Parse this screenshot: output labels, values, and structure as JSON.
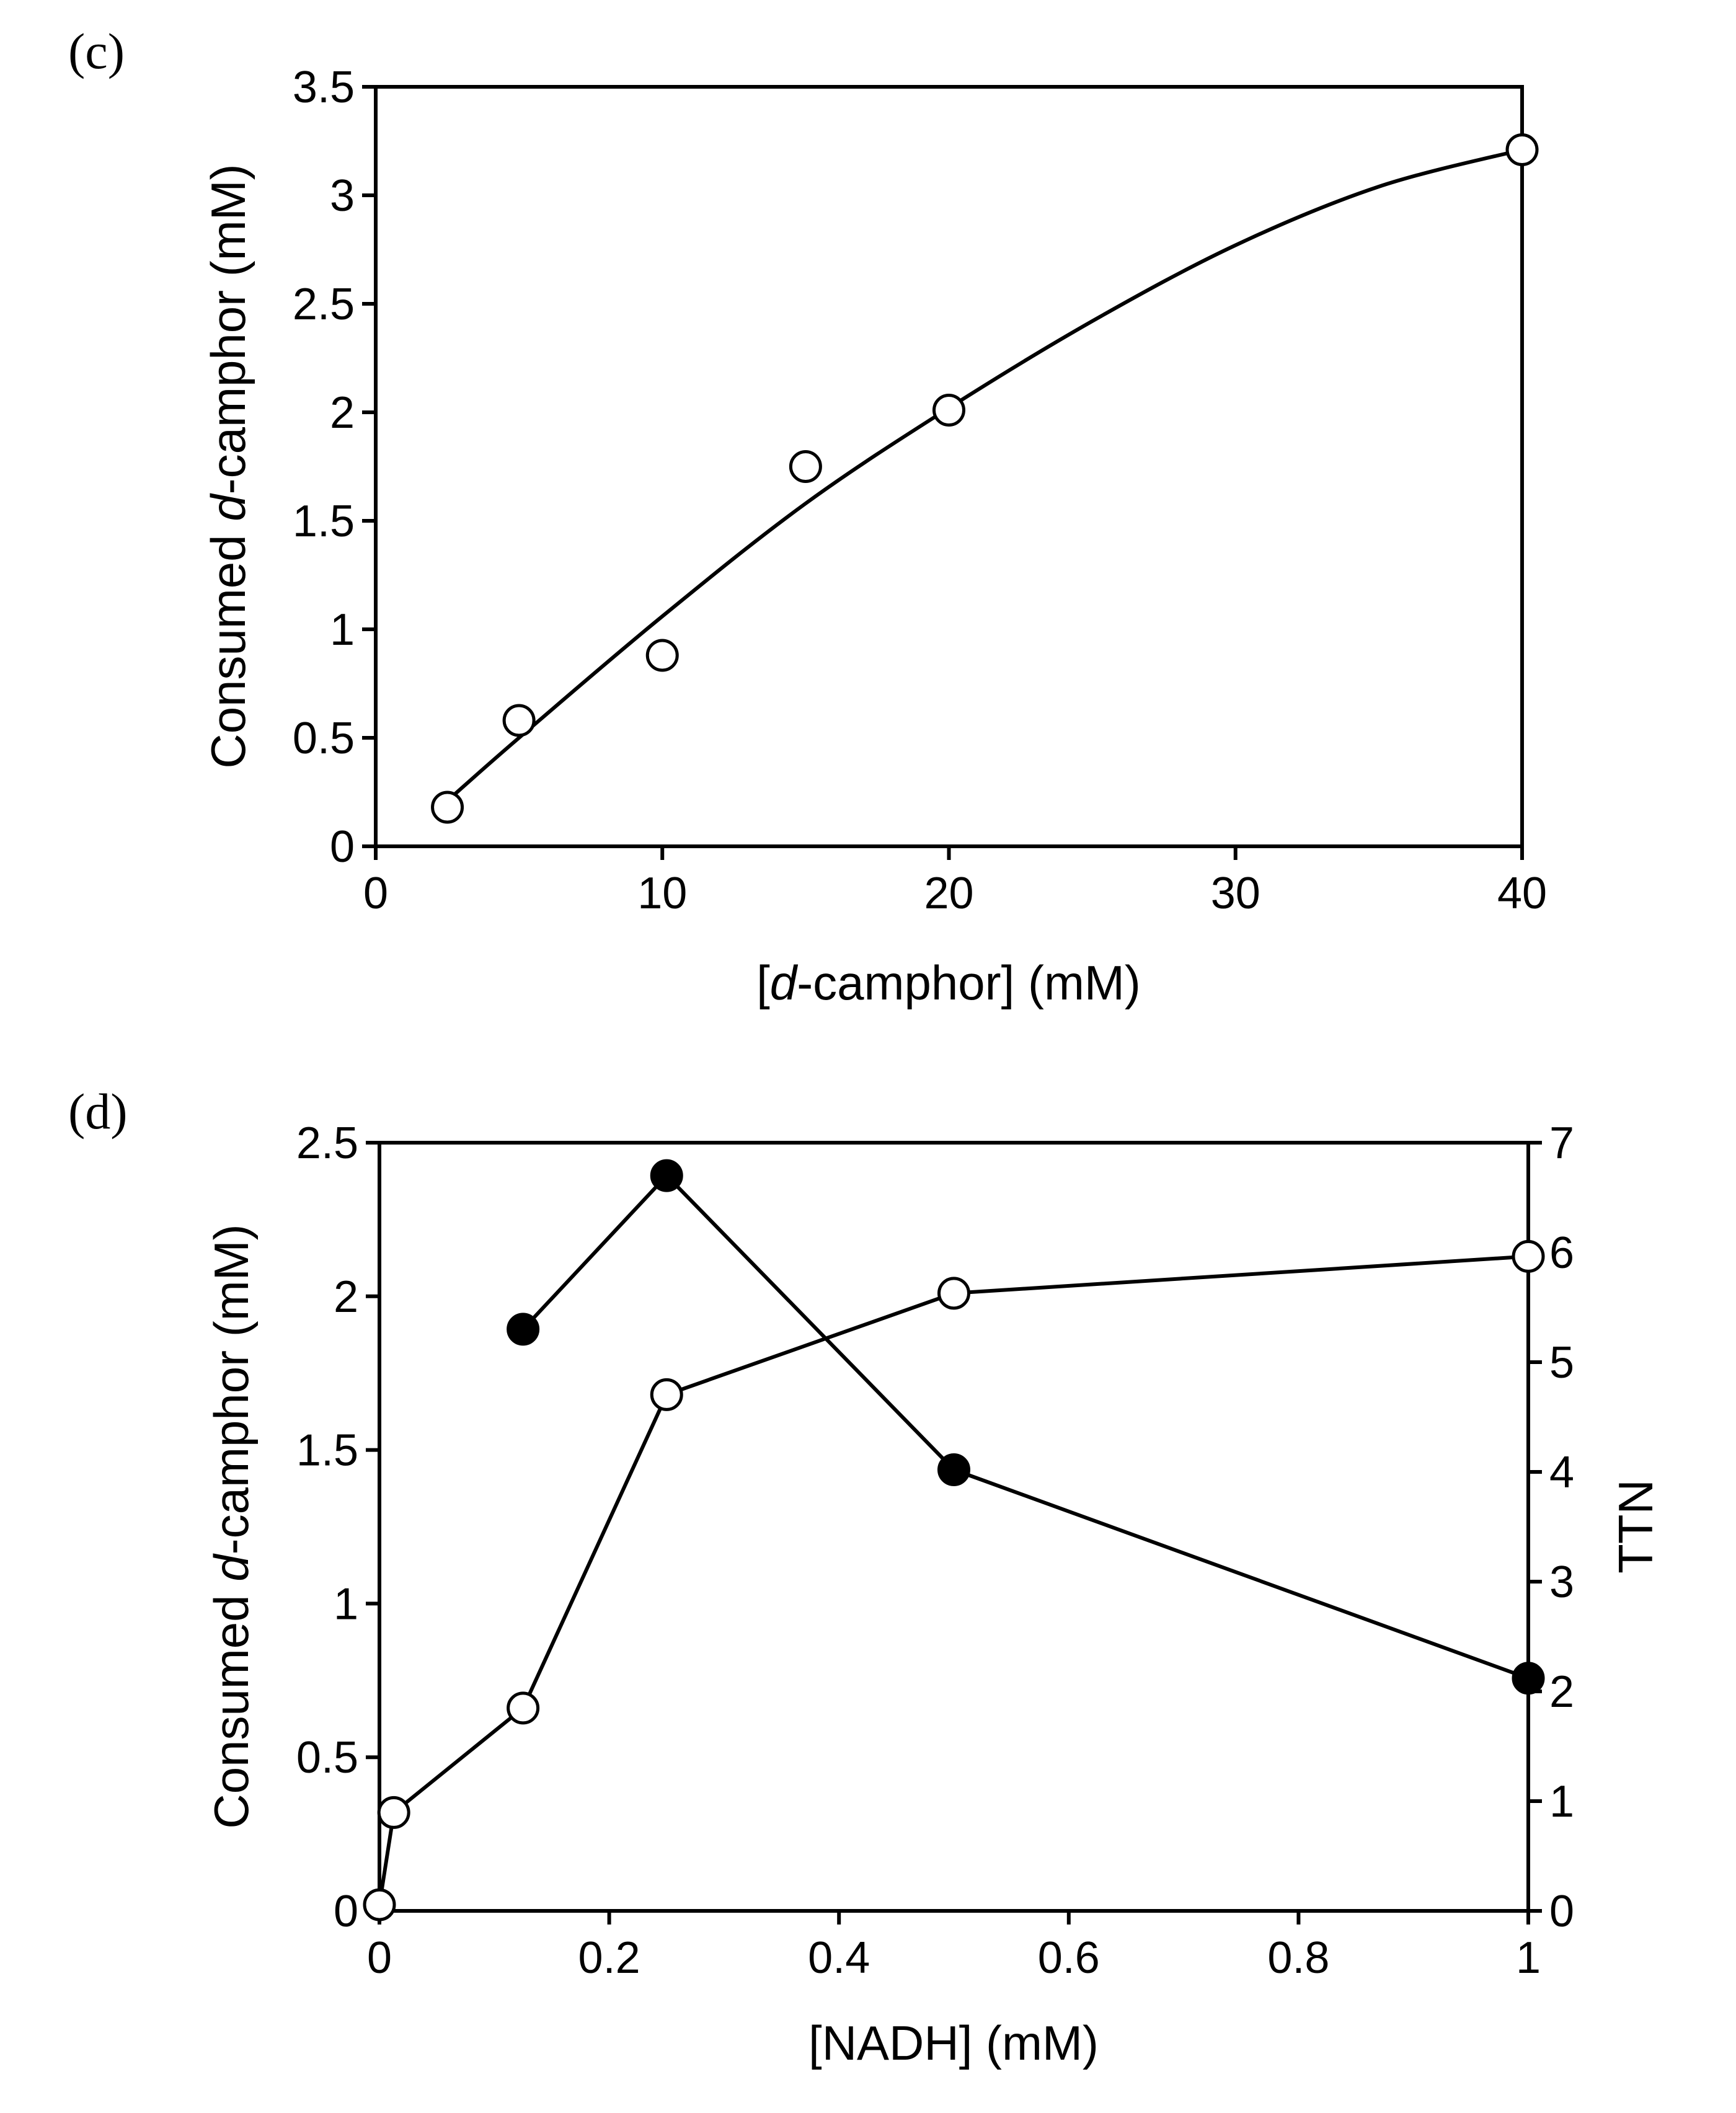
{
  "chart_data": [
    {
      "panel_label": "(c)",
      "type": "scatter",
      "xlabel": {
        "pre": "[",
        "italic": "d",
        "post": "-camphor] (mM)"
      },
      "ylabel": {
        "pre": "Consumed ",
        "italic": "d",
        "post": "-camphor (mM)"
      },
      "xlim": [
        0,
        40
      ],
      "ylim": [
        0,
        3.5
      ],
      "xticks": [
        0,
        10,
        20,
        30,
        40
      ],
      "xtick_labels": [
        "0",
        "10",
        "20",
        "30",
        "40"
      ],
      "yticks": [
        0,
        0.5,
        1,
        1.5,
        2,
        2.5,
        3,
        3.5
      ],
      "ytick_labels": [
        "0",
        "0.5",
        "1",
        "1.5",
        "2",
        "2.5",
        "3",
        "3.5"
      ],
      "grid": false,
      "series": [
        {
          "name": "Consumed d-camphor",
          "marker": "open-circle",
          "x": [
            2.5,
            5,
            10,
            15,
            20,
            40
          ],
          "y": [
            0.18,
            0.58,
            0.88,
            1.75,
            2.01,
            3.21
          ]
        }
      ],
      "fit_curve": {
        "x": [
          2.5,
          5,
          10,
          15,
          20,
          25,
          30,
          35,
          40
        ],
        "y": [
          0.21,
          0.5,
          1.06,
          1.58,
          2.02,
          2.42,
          2.77,
          3.04,
          3.21
        ]
      }
    },
    {
      "panel_label": "(d)",
      "type": "line",
      "xlabel": {
        "pre": "[NADH] (mM)",
        "italic": "",
        "post": ""
      },
      "ylabel": {
        "pre": "Consumed ",
        "italic": "d",
        "post": "-camphor (mM)"
      },
      "y2label": "TTN",
      "xlim": [
        0,
        1
      ],
      "ylim": [
        0,
        2.5
      ],
      "y2lim": [
        0,
        7
      ],
      "xticks": [
        0,
        0.2,
        0.4,
        0.6,
        0.8,
        1
      ],
      "xtick_labels": [
        "0",
        "0.2",
        "0.4",
        "0.6",
        "0.8",
        "1"
      ],
      "yticks": [
        0,
        0.5,
        1,
        1.5,
        2,
        2.5
      ],
      "ytick_labels": [
        "0",
        "0.5",
        "1",
        "1.5",
        "2",
        "2.5"
      ],
      "y2ticks": [
        0,
        1,
        2,
        3,
        4,
        5,
        6,
        7
      ],
      "y2tick_labels": [
        "0",
        "1",
        "2",
        "3",
        "4",
        "5",
        "6",
        "7"
      ],
      "grid": false,
      "series": [
        {
          "name": "Consumed d-camphor",
          "axis": "left",
          "marker": "open-circle",
          "x": [
            0,
            0.0125,
            0.125,
            0.25,
            0.5,
            1
          ],
          "y": [
            0.02,
            0.32,
            0.66,
            1.68,
            2.01,
            2.13
          ]
        },
        {
          "name": "TTN",
          "axis": "right",
          "marker": "filled-circle",
          "x": [
            0.125,
            0.25,
            0.5,
            1
          ],
          "y": [
            5.3,
            6.7,
            4.02,
            2.12
          ]
        }
      ]
    }
  ]
}
